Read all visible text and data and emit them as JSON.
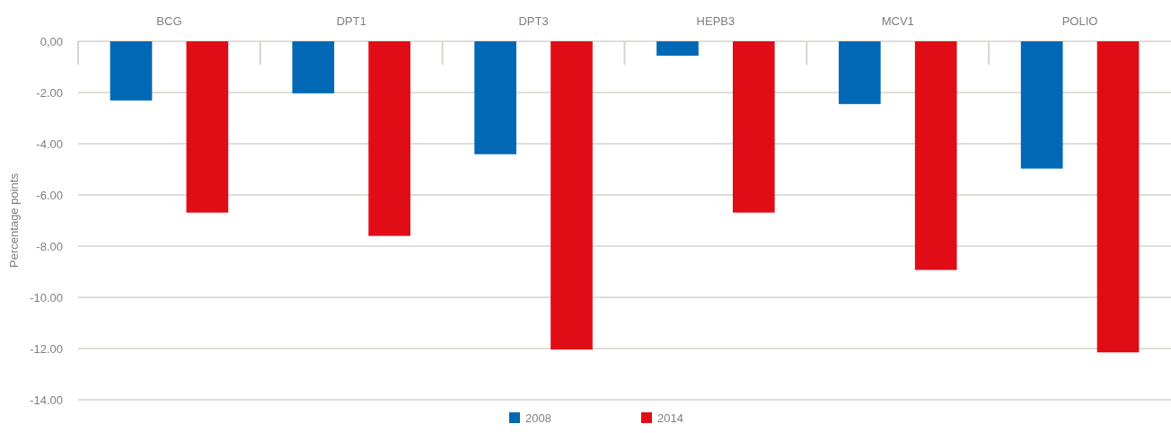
{
  "chart_data": {
    "type": "bar",
    "ylabel": "Percentage points",
    "categories": [
      "BCG",
      "DPT1",
      "DPT3",
      "HEPB3",
      "MCV1",
      "POLIO"
    ],
    "series": [
      {
        "name": "2008",
        "color": "#0068b4",
        "values": [
          -2.31,
          -2.03,
          -4.41,
          -0.56,
          -2.45,
          -4.97
        ]
      },
      {
        "name": "2014",
        "color": "#e00d17",
        "values": [
          -6.69,
          -7.6,
          -12.04,
          -6.69,
          -8.93,
          -12.15
        ]
      }
    ],
    "ylim": [
      -14,
      0
    ],
    "yticks": [
      {
        "value": 0,
        "label": "0,00"
      },
      {
        "value": -2,
        "label": "-2.00"
      },
      {
        "value": -4,
        "label": "-4.00"
      },
      {
        "value": -6,
        "label": "-6.00"
      },
      {
        "value": -8,
        "label": "-8.00"
      },
      {
        "value": -10,
        "label": "-10.00"
      },
      {
        "value": -12,
        "label": "-12.00"
      },
      {
        "value": -14,
        "label": "-14.00"
      }
    ],
    "grid": "y",
    "legend": "bottom"
  }
}
